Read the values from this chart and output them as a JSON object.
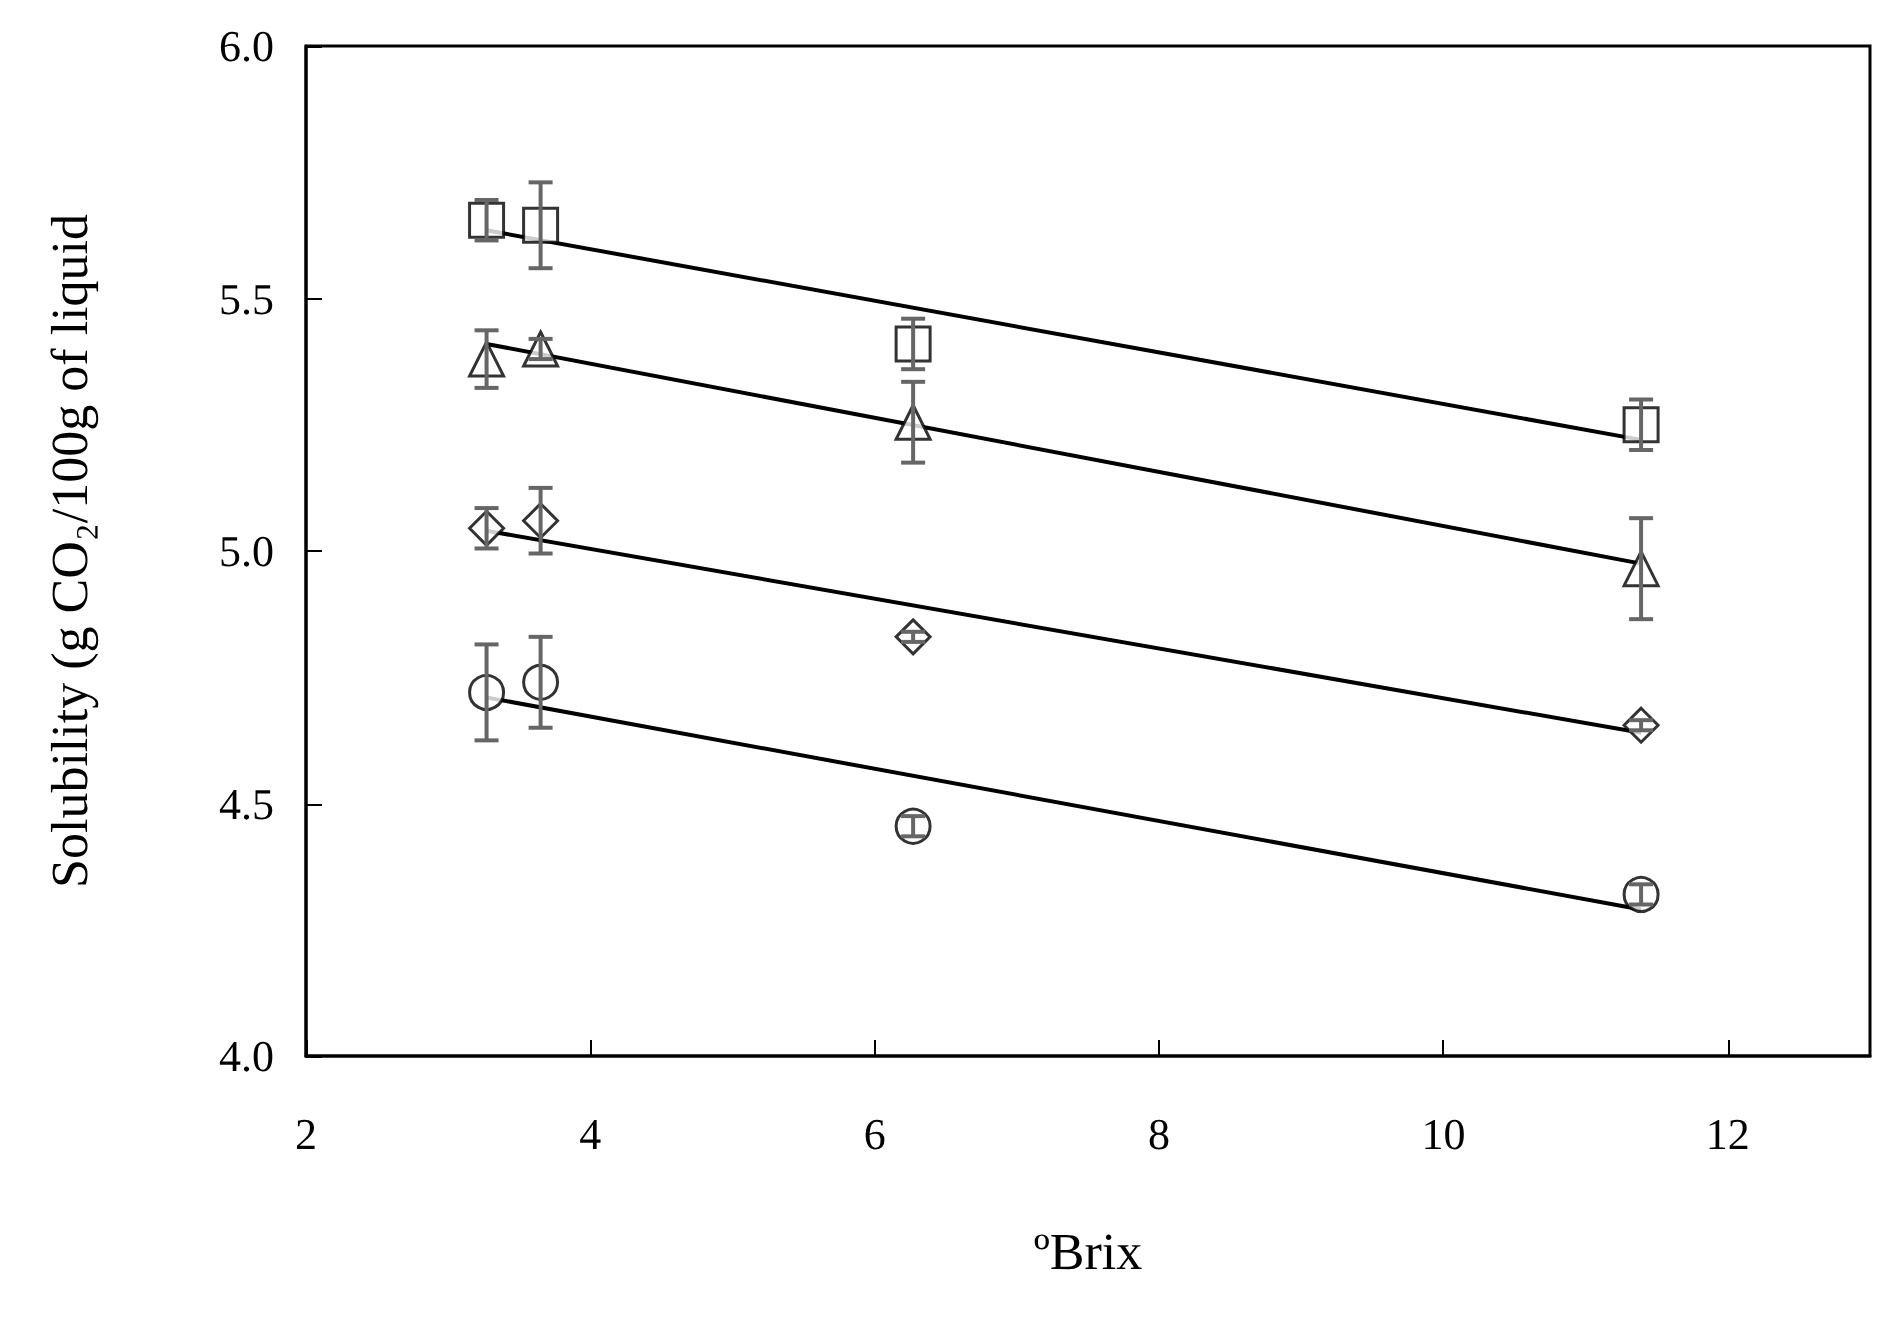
{
  "chart_data": {
    "type": "scatter",
    "xlabel": "ºBrix",
    "ylabel": "Solubility (g CO₂/100g of liquid",
    "xlim": [
      2,
      13
    ],
    "xticks": [
      2,
      4,
      6,
      8,
      10,
      12
    ],
    "ylim": [
      4.0,
      6.0
    ],
    "yticks": [
      {
        "value": 4,
        "label": "4.0"
      },
      {
        "value": 4.5,
        "label": "4.5"
      },
      {
        "value": 5,
        "label": "5.0"
      },
      {
        "value": 5.5,
        "label": "5.5"
      },
      {
        "value": 6,
        "label": "6.0"
      }
    ],
    "grid": false,
    "series": [
      {
        "marker": "square",
        "color": "#000000",
        "x": [
          3.27,
          3.65,
          6.27,
          11.39
        ],
        "values": [
          5.655,
          5.645,
          5.41,
          5.25
        ],
        "errors": [
          0.04,
          0.085,
          0.05,
          0.05
        ]
      },
      {
        "marker": "triangle",
        "color": "#000000",
        "x": [
          3.27,
          3.65,
          6.27,
          11.39
        ],
        "values": [
          5.38,
          5.4,
          5.255,
          4.965
        ],
        "errors": [
          0.057,
          0.02,
          0.08,
          0.1
        ]
      },
      {
        "marker": "diamond",
        "color": "#000000",
        "x": [
          3.27,
          3.65,
          6.27,
          11.39
        ],
        "values": [
          5.045,
          5.06,
          4.83,
          4.655
        ],
        "errors": [
          0.04,
          0.065,
          0.01,
          0.01
        ]
      },
      {
        "marker": "circle",
        "color": "#000000",
        "x": [
          3.27,
          3.65,
          6.27,
          11.39
        ],
        "values": [
          4.72,
          4.74,
          4.455,
          4.32
        ],
        "errors": [
          0.095,
          0.09,
          0.02,
          0.02
        ]
      },
      {
        "type": "line",
        "color": "#000000",
        "x": [
          3.27,
          11.39
        ],
        "values": [
          5.635,
          5.22
        ]
      },
      {
        "type": "line",
        "color": "#000000",
        "x": [
          3.27,
          11.39
        ],
        "values": [
          5.41,
          4.975
        ]
      },
      {
        "type": "line",
        "color": "#000000",
        "x": [
          3.27,
          11.39
        ],
        "values": [
          5.04,
          4.64
        ]
      },
      {
        "type": "line",
        "color": "#000000",
        "x": [
          3.27,
          11.39
        ],
        "values": [
          4.71,
          4.29
        ]
      }
    ]
  }
}
